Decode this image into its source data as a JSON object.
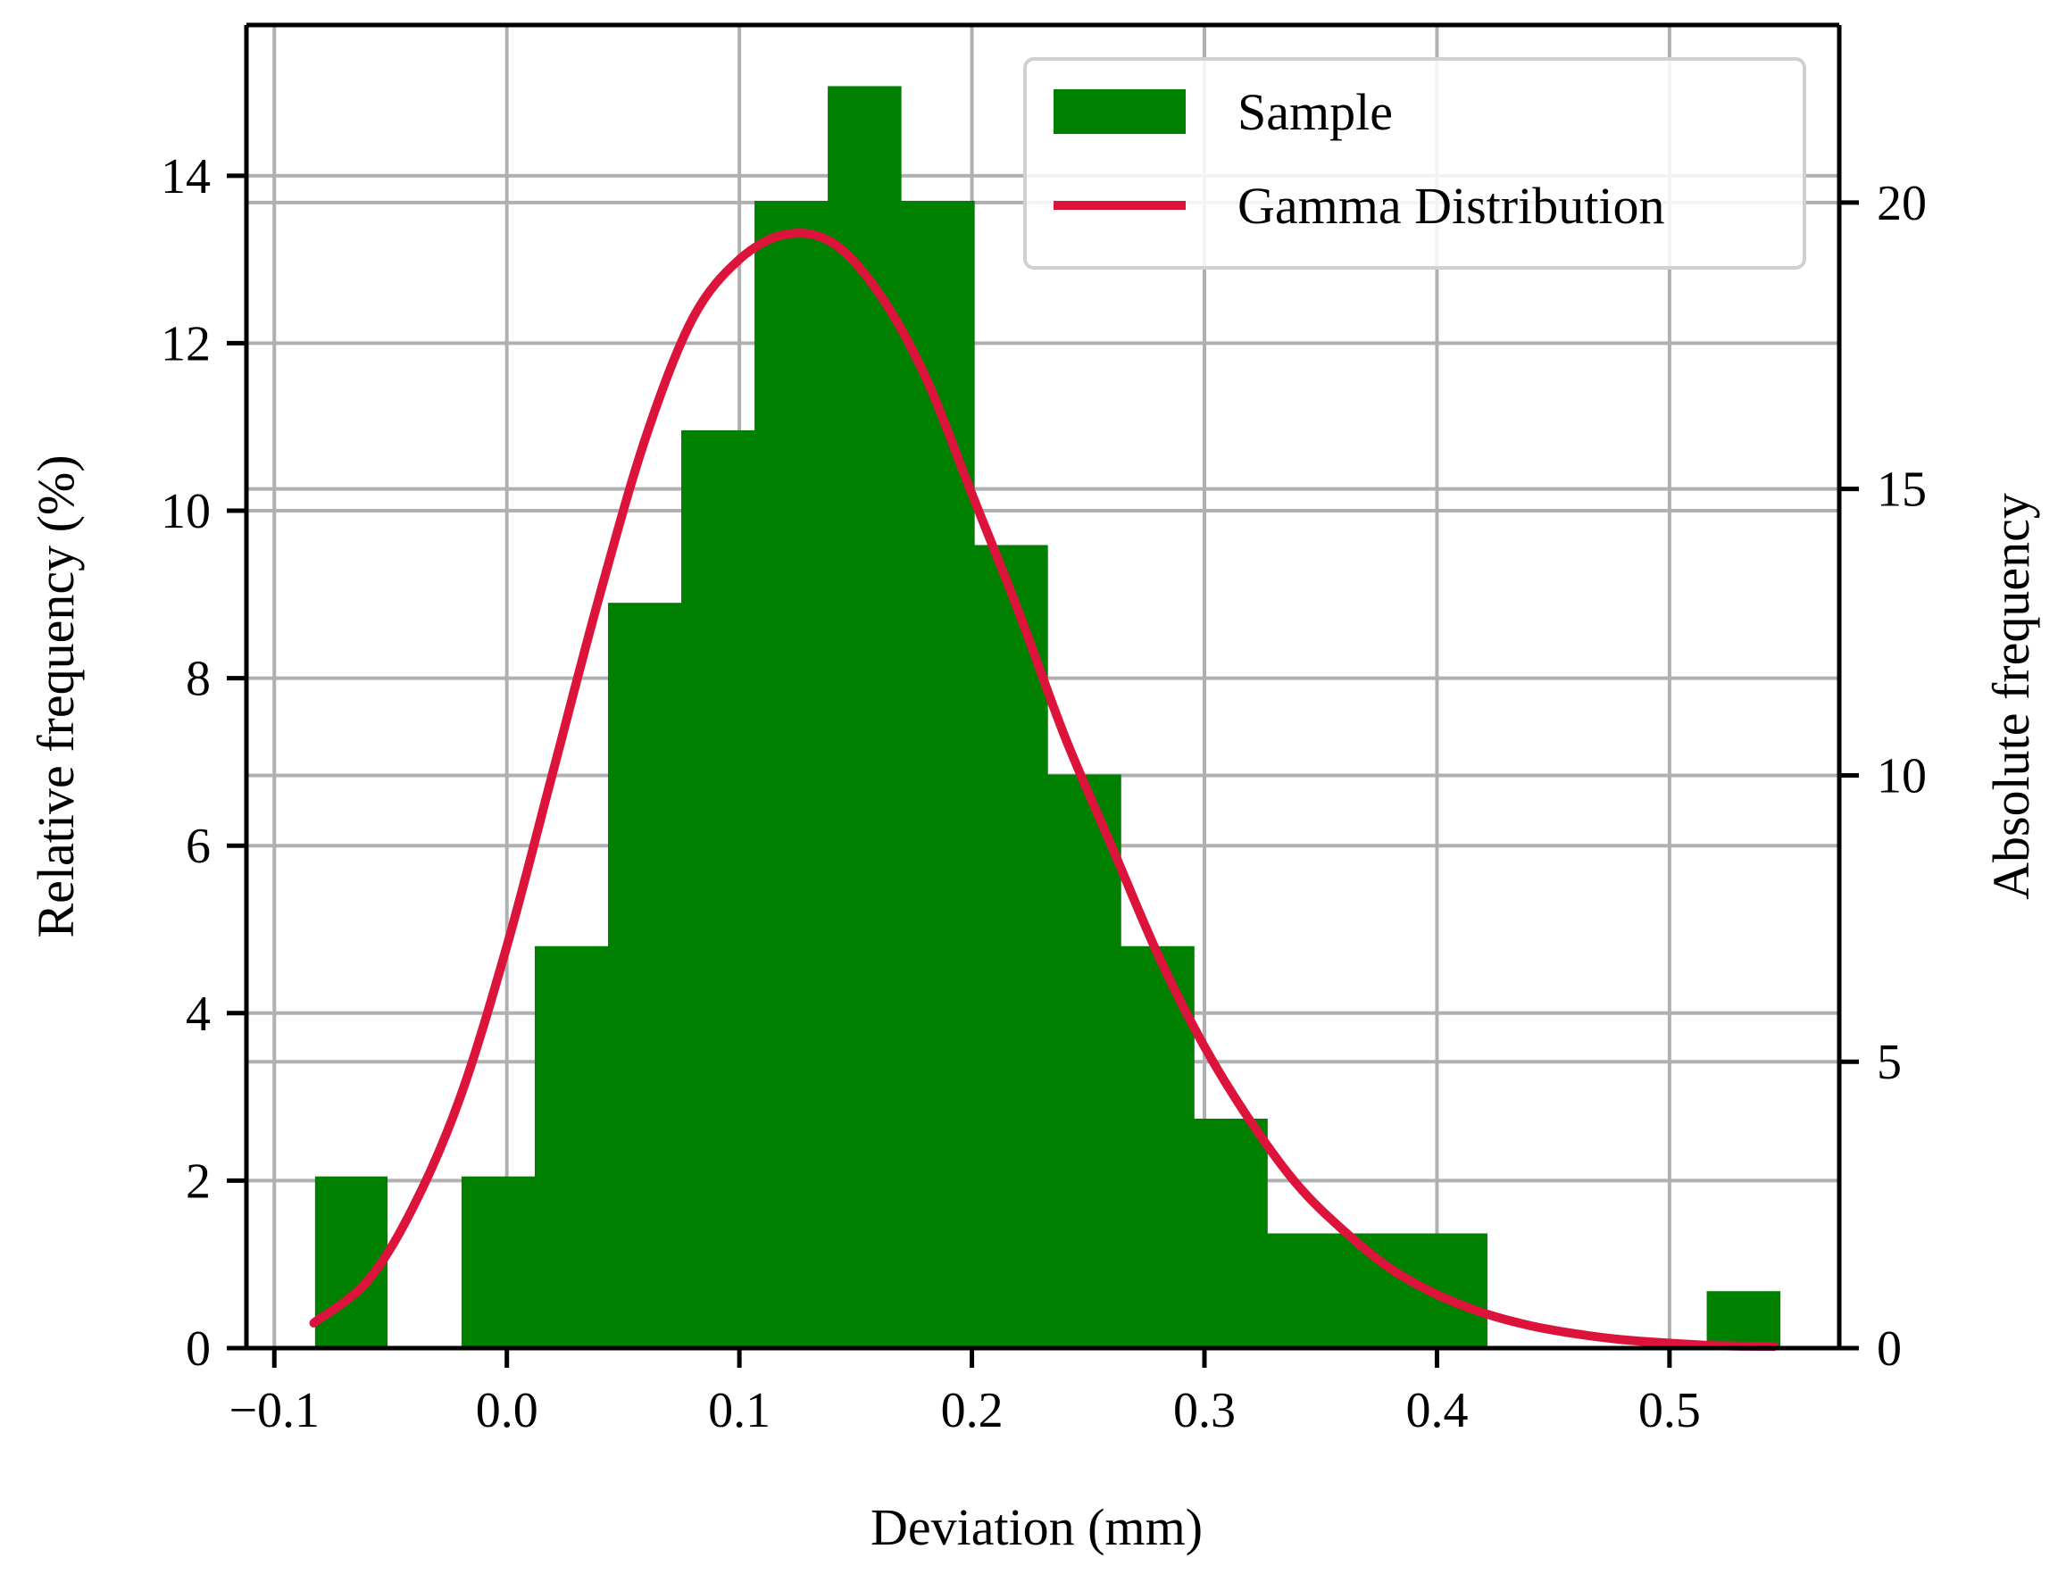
{
  "chart_data": {
    "type": "bar",
    "xlabel": "Deviation (mm)",
    "ylabel": "Relative frequency (%)",
    "y2label": "Absolute frequency",
    "xlim": [
      -0.112,
      0.573
    ],
    "ylim": [
      0,
      15.8
    ],
    "y2lim": [
      0,
      23.1
    ],
    "xticks": [
      "−0.1",
      "0.0",
      "0.1",
      "0.2",
      "0.3",
      "0.4",
      "0.5"
    ],
    "xtick_values": [
      -0.1,
      0.0,
      0.1,
      0.2,
      0.3,
      0.4,
      0.5
    ],
    "yticks": [
      "0",
      "2",
      "4",
      "6",
      "8",
      "10",
      "12",
      "14"
    ],
    "ytick_values": [
      0,
      2,
      4,
      6,
      8,
      10,
      12,
      14
    ],
    "y2ticks": [
      "0",
      "5",
      "10",
      "15",
      "20"
    ],
    "y2tick_values": [
      0,
      5,
      10,
      15,
      20
    ],
    "grid": true,
    "legend_position": "top-right",
    "colors": {
      "sample": "#008000",
      "gamma": "#dc143c",
      "grid": "#b0b0b0"
    },
    "series": [
      {
        "name": "Sample",
        "kind": "histogram",
        "bins": [
          {
            "x0": -0.0825,
            "x1": -0.0515,
            "relative_pct": 2.05,
            "count": 3
          },
          {
            "x0": -0.0515,
            "x1": -0.0195,
            "relative_pct": 0,
            "count": 0
          },
          {
            "x0": -0.0195,
            "x1": 0.012,
            "relative_pct": 2.05,
            "count": 3
          },
          {
            "x0": 0.012,
            "x1": 0.0435,
            "relative_pct": 4.8,
            "count": 7
          },
          {
            "x0": 0.0435,
            "x1": 0.075,
            "relative_pct": 8.9,
            "count": 13
          },
          {
            "x0": 0.075,
            "x1": 0.1065,
            "relative_pct": 10.96,
            "count": 16
          },
          {
            "x0": 0.1065,
            "x1": 0.138,
            "relative_pct": 13.7,
            "count": 20
          },
          {
            "x0": 0.138,
            "x1": 0.1695,
            "relative_pct": 15.07,
            "count": 22
          },
          {
            "x0": 0.1695,
            "x1": 0.201,
            "relative_pct": 13.7,
            "count": 20
          },
          {
            "x0": 0.201,
            "x1": 0.2325,
            "relative_pct": 9.59,
            "count": 14
          },
          {
            "x0": 0.2325,
            "x1": 0.264,
            "relative_pct": 6.85,
            "count": 10
          },
          {
            "x0": 0.264,
            "x1": 0.2955,
            "relative_pct": 4.8,
            "count": 7
          },
          {
            "x0": 0.2955,
            "x1": 0.327,
            "relative_pct": 2.74,
            "count": 4
          },
          {
            "x0": 0.327,
            "x1": 0.3585,
            "relative_pct": 1.37,
            "count": 2
          },
          {
            "x0": 0.3585,
            "x1": 0.39,
            "relative_pct": 1.37,
            "count": 2
          },
          {
            "x0": 0.39,
            "x1": 0.4215,
            "relative_pct": 1.37,
            "count": 2
          },
          {
            "x0": 0.4215,
            "x1": 0.453,
            "relative_pct": 0,
            "count": 0
          },
          {
            "x0": 0.453,
            "x1": 0.4845,
            "relative_pct": 0,
            "count": 0
          },
          {
            "x0": 0.4845,
            "x1": 0.516,
            "relative_pct": 0,
            "count": 0
          },
          {
            "x0": 0.516,
            "x1": 0.5475,
            "relative_pct": 0.68,
            "count": 1
          }
        ]
      },
      {
        "name": "Gamma Distribution",
        "kind": "line",
        "x": [
          -0.083,
          -0.06,
          -0.04,
          -0.02,
          0.0,
          0.02,
          0.04,
          0.06,
          0.08,
          0.1,
          0.12,
          0.14,
          0.16,
          0.18,
          0.2,
          0.22,
          0.24,
          0.26,
          0.28,
          0.3,
          0.32,
          0.34,
          0.36,
          0.38,
          0.4,
          0.42,
          0.44,
          0.46,
          0.48,
          0.5,
          0.52,
          0.545
        ],
        "y": [
          0.3,
          0.8,
          1.7,
          3.0,
          4.8,
          6.9,
          9.0,
          10.9,
          12.3,
          13.0,
          13.3,
          13.2,
          12.6,
          11.6,
          10.2,
          8.8,
          7.3,
          6.0,
          4.7,
          3.6,
          2.7,
          1.95,
          1.4,
          0.95,
          0.64,
          0.42,
          0.27,
          0.17,
          0.1,
          0.06,
          0.03,
          0.02
        ]
      }
    ]
  }
}
